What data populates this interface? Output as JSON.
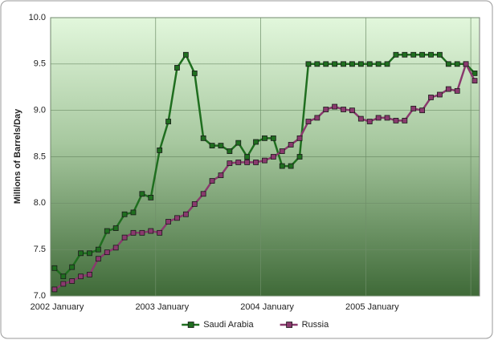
{
  "chart_data": {
    "type": "line",
    "y_label": "Millions of Barrels/Day",
    "categories": [
      "2002 January",
      null,
      null,
      null,
      null,
      null,
      null,
      null,
      null,
      null,
      null,
      null,
      "2003 January",
      null,
      null,
      null,
      null,
      null,
      null,
      null,
      null,
      null,
      null,
      null,
      "2004 January",
      null,
      null,
      null,
      null,
      null,
      null,
      null,
      null,
      null,
      null,
      null,
      "2005 January",
      null,
      null,
      null,
      null,
      null,
      null,
      null,
      null,
      null,
      null,
      null,
      null
    ],
    "series": [
      {
        "name": "Saudi Arabia",
        "color": "#1f6e1f",
        "values": [
          7.3,
          7.21,
          7.31,
          7.46,
          7.46,
          7.5,
          7.7,
          7.73,
          7.88,
          7.9,
          8.1,
          8.06,
          8.57,
          8.88,
          9.46,
          9.6,
          9.4,
          8.7,
          8.62,
          8.62,
          8.56,
          8.65,
          8.5,
          8.66,
          8.7,
          8.7,
          8.4,
          8.4,
          8.5,
          9.5,
          9.5,
          9.5,
          9.5,
          9.5,
          9.5,
          9.5,
          9.5,
          9.5,
          9.5,
          9.6,
          9.6,
          9.6,
          9.6,
          9.6,
          9.6,
          9.5,
          9.5,
          9.5,
          9.4
        ]
      },
      {
        "name": "Russia",
        "color": "#8a3a6e",
        "values": [
          7.07,
          7.13,
          7.16,
          7.21,
          7.23,
          7.4,
          7.47,
          7.52,
          7.63,
          7.68,
          7.68,
          7.7,
          7.68,
          7.8,
          7.84,
          7.88,
          7.99,
          8.1,
          8.24,
          8.3,
          8.43,
          8.44,
          8.44,
          8.44,
          8.46,
          8.5,
          8.56,
          8.63,
          8.7,
          8.88,
          8.92,
          9.01,
          9.04,
          9.01,
          9.0,
          8.91,
          8.88,
          8.92,
          8.92,
          8.89,
          8.89,
          9.02,
          9.0,
          9.14,
          9.17,
          9.23,
          9.21,
          9.5,
          9.32
        ]
      }
    ],
    "ylim": [
      7,
      10
    ],
    "yticks": [
      {
        "value": 7,
        "label": "7.0"
      },
      7.5,
      {
        "value": 8,
        "label": "8.0"
      },
      8.5,
      {
        "value": 9,
        "label": "9.0"
      },
      9.5,
      {
        "value": 10,
        "label": "10.0"
      }
    ],
    "grid": true,
    "legend": "bottom"
  }
}
